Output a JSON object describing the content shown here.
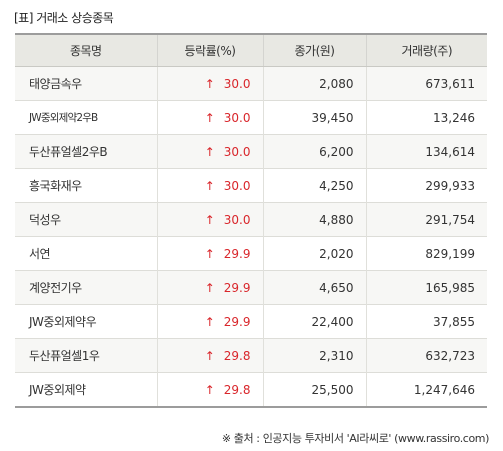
{
  "title": "[표] 거래소 상승종목",
  "columns": [
    "종목명",
    "등락률(%)",
    "종가(원)",
    "거래량(주)"
  ],
  "up_arrow": "↑",
  "accent_color": "#d9262b",
  "rows": [
    {
      "name": "태양금속우",
      "rate": "30.0",
      "close": "2,080",
      "volume": "673,611"
    },
    {
      "name": "JW중외제약2우B",
      "rate": "30.0",
      "close": "39,450",
      "volume": "13,246"
    },
    {
      "name": "두산퓨얼셀2우B",
      "rate": "30.0",
      "close": "6,200",
      "volume": "134,614"
    },
    {
      "name": "흥국화재우",
      "rate": "30.0",
      "close": "4,250",
      "volume": "299,933"
    },
    {
      "name": "덕성우",
      "rate": "30.0",
      "close": "4,880",
      "volume": "291,754"
    },
    {
      "name": "서연",
      "rate": "29.9",
      "close": "2,020",
      "volume": "829,199"
    },
    {
      "name": "계양전기우",
      "rate": "29.9",
      "close": "4,650",
      "volume": "165,985"
    },
    {
      "name": "JW중외제약우",
      "rate": "29.9",
      "close": "22,400",
      "volume": "37,855"
    },
    {
      "name": "두산퓨얼셀1우",
      "rate": "29.8",
      "close": "2,310",
      "volume": "632,723"
    },
    {
      "name": "JW중외제약",
      "rate": "29.8",
      "close": "25,500",
      "volume": "1,247,646"
    }
  ],
  "source": "※ 출처 : 인공지능 투자비서 'AI라씨로' (www.rassiro.com)"
}
